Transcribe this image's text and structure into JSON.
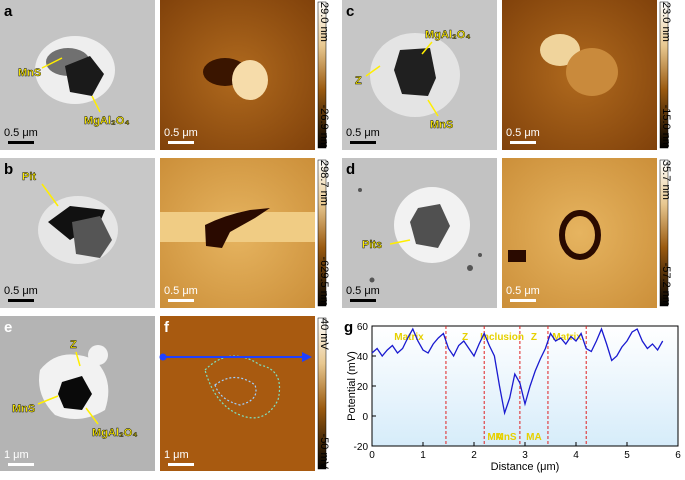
{
  "panels": [
    {
      "label": "a",
      "annotations": [
        "MnS",
        "MgAl₂O₄"
      ],
      "scale_bars": [
        "0.5 μm",
        "0.5 μm"
      ],
      "colorbar": [
        "29.0 nm",
        "-26.9 nm"
      ]
    },
    {
      "label": "b",
      "annotations": [
        "Pit"
      ],
      "scale_bars": [
        "0.5 μm",
        "0.5 μm"
      ],
      "colorbar": [
        "298.7 nm",
        "-629.5 nm"
      ]
    },
    {
      "label": "c",
      "annotations": [
        "MgAl₂O₄",
        "Z",
        "MnS"
      ],
      "scale_bars": [
        "0.5 μm",
        "0.5 μm"
      ],
      "colorbar": [
        "23.0 nm",
        "-15.0 nm"
      ]
    },
    {
      "label": "d",
      "annotations": [
        "Pits"
      ],
      "scale_bars": [
        "0.5 μm",
        "0.5 μm"
      ],
      "colorbar": [
        "35.7 nm",
        "-57.2 nm"
      ]
    },
    {
      "label": "e",
      "annotations": [
        "Z",
        "MnS",
        "MgAl₂O₄"
      ],
      "scale_bars": [
        "1 μm"
      ]
    },
    {
      "label": "f",
      "scale_bars": [
        "1 μm"
      ],
      "colorbar": [
        "40 mV",
        "-50 mV"
      ]
    },
    {
      "label": "g"
    }
  ],
  "chart_data": {
    "type": "line",
    "xlabel": "Distance (μm)",
    "ylabel": "Potential (mV)",
    "x": [
      0,
      0.1,
      0.2,
      0.3,
      0.4,
      0.5,
      0.6,
      0.7,
      0.8,
      0.9,
      1.0,
      1.1,
      1.2,
      1.3,
      1.4,
      1.5,
      1.6,
      1.7,
      1.8,
      1.9,
      2.0,
      2.1,
      2.2,
      2.3,
      2.4,
      2.5,
      2.6,
      2.7,
      2.8,
      2.9,
      3.0,
      3.1,
      3.2,
      3.3,
      3.4,
      3.5,
      3.6,
      3.7,
      3.8,
      3.9,
      4.0,
      4.1,
      4.2,
      4.3,
      4.4,
      4.5,
      4.6,
      4.7,
      4.8,
      4.9,
      5.0,
      5.1,
      5.2,
      5.3,
      5.4,
      5.5,
      5.6,
      5.7
    ],
    "series": [
      {
        "name": "Potential",
        "color": "#1a1ad0",
        "values": [
          42,
          45,
          40,
          44,
          47,
          42,
          45,
          52,
          58,
          50,
          44,
          42,
          48,
          52,
          55,
          45,
          40,
          47,
          50,
          45,
          40,
          48,
          55,
          47,
          40,
          20,
          2,
          12,
          28,
          22,
          8,
          20,
          30,
          38,
          45,
          55,
          50,
          52,
          48,
          53,
          50,
          55,
          45,
          43,
          50,
          58,
          48,
          37,
          40,
          46,
          50,
          56,
          58,
          50,
          45,
          48,
          44,
          50
        ]
      }
    ],
    "xlim": [
      0,
      6
    ],
    "xticks": [
      0,
      1,
      2,
      3,
      4,
      5,
      6
    ],
    "ylim": [
      -20,
      60
    ],
    "yticks": [
      -20,
      0,
      20,
      40,
      60
    ],
    "boundaries": [
      1.45,
      2.2,
      2.9,
      3.45,
      4.2
    ],
    "regions": [
      "Matrix",
      "Z",
      "Inclusion",
      "Z",
      "Matrix"
    ],
    "phases": [
      "MA",
      "MnS",
      "MA"
    ]
  }
}
